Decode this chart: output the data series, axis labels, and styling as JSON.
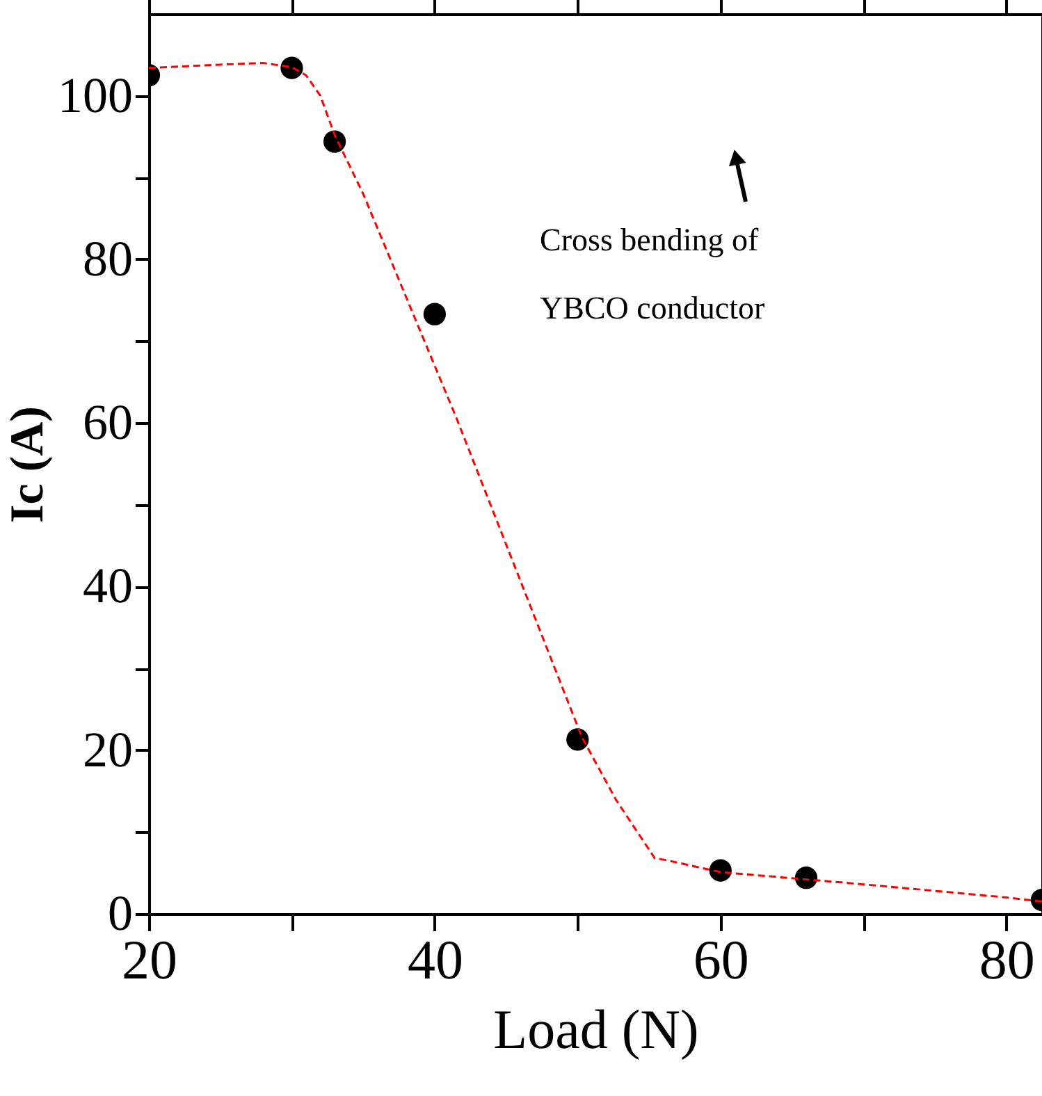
{
  "chart_data": {
    "type": "scatter",
    "xlabel": "Load (N)",
    "ylabel": "Ic (A)",
    "xlim": [
      20,
      82.5
    ],
    "ylim": [
      0,
      110
    ],
    "xticks": [
      20,
      {
        "value": 30,
        "label": null
      },
      40,
      {
        "value": 50,
        "label": null
      },
      60,
      {
        "value": 70,
        "label": null
      },
      80
    ],
    "yticks": [
      0,
      {
        "value": 10,
        "label": null
      },
      20,
      {
        "value": 30,
        "label": null
      },
      40,
      {
        "value": 50,
        "label": null
      },
      60,
      {
        "value": 70,
        "label": null
      },
      80,
      {
        "value": 90,
        "label": null
      },
      100
    ],
    "grid": false,
    "series": [
      {
        "color": "#000000",
        "marker": "circle",
        "x": [
          20,
          30,
          33,
          40,
          50,
          60,
          66,
          82.5
        ],
        "values": [
          102.5,
          103.4,
          94.4,
          73.3,
          21.3,
          5.3,
          4.4,
          1.7
        ]
      },
      {
        "type": "line",
        "color": "#ff0000",
        "line_style": "dashed",
        "marker": "none",
        "x": [
          20,
          25,
          28,
          30,
          31,
          32,
          33,
          35,
          41.5,
          50.3,
          52.7,
          55.4,
          56.1,
          60,
          70,
          80,
          82.5
        ],
        "values": [
          103.4,
          103.8,
          104,
          103.5,
          102.5,
          100,
          95.2,
          88,
          60.7,
          21.6,
          13.9,
          6.8,
          6.6,
          5.1,
          3.6,
          2.0,
          1.5
        ]
      }
    ],
    "annotations": [
      "Cross bending of\nYBCO conductor"
    ]
  }
}
